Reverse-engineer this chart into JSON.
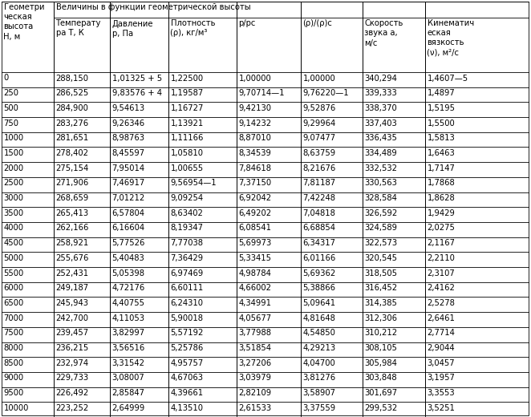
{
  "rows": [
    [
      "0",
      "288,150",
      "1,01325 + 5",
      "1,22500",
      "1,00000",
      "1,00000",
      "340,294",
      "1,4607—5"
    ],
    [
      "250",
      "286,525",
      "9,83576 + 4",
      "1,19587",
      "9,70714—1",
      "9,76220—1",
      "339,333",
      "1,4897"
    ],
    [
      "500",
      "284,900",
      "9,54613",
      "1,16727",
      "9,42130",
      "9,52876",
      "338,370",
      "1,5195"
    ],
    [
      "750",
      "283,276",
      "9,26346",
      "1,13921",
      "9,14232",
      "9,29964",
      "337,403",
      "1,5500"
    ],
    [
      "1000",
      "281,651",
      "8,98763",
      "1,11166",
      "8,87010",
      "9,07477",
      "336,435",
      "1,5813"
    ],
    [
      "1500",
      "278,402",
      "8,45597",
      "1,05810",
      "8,34539",
      "8,63759",
      "334,489",
      "1,6463"
    ],
    [
      "2000",
      "275,154",
      "7,95014",
      "1,00655",
      "7,84618",
      "8,21676",
      "332,532",
      "1,7147"
    ],
    [
      "2500",
      "271,906",
      "7,46917",
      "9,56954—1",
      "7,37150",
      "7,81187",
      "330,563",
      "1,7868"
    ],
    [
      "3000",
      "268,659",
      "7,01212",
      "9,09254",
      "6,92042",
      "7,42248",
      "328,584",
      "1,8628"
    ],
    [
      "3500",
      "265,413",
      "6,57804",
      "8,63402",
      "6,49202",
      "7,04818",
      "326,592",
      "1,9429"
    ],
    [
      "4000",
      "262,166",
      "6,16604",
      "8,19347",
      "6,08541",
      "6,68854",
      "324,589",
      "2,0275"
    ],
    [
      "4500",
      "258,921",
      "5,77526",
      "7,77038",
      "5,69973",
      "6,34317",
      "322,573",
      "2,1167"
    ],
    [
      "5000",
      "255,676",
      "5,40483",
      "7,36429",
      "5,33415",
      "6,01166",
      "320,545",
      "2,2110"
    ],
    [
      "5500",
      "252,431",
      "5,05398",
      "6,97469",
      "4,98784",
      "5,69362",
      "318,505",
      "2,3107"
    ],
    [
      "6000",
      "249,187",
      "4,72176",
      "6,60111",
      "4,66002",
      "5,38866",
      "316,452",
      "2,4162"
    ],
    [
      "6500",
      "245,943",
      "4,40755",
      "6,24310",
      "4,34991",
      "5,09641",
      "314,385",
      "2,5278"
    ],
    [
      "7000",
      "242,700",
      "4,11053",
      "5,90018",
      "4,05677",
      "4,81648",
      "312,306",
      "2,6461"
    ],
    [
      "7500",
      "239,457",
      "3,82997",
      "5,57192",
      "3,77988",
      "4,54850",
      "310,212",
      "2,7714"
    ],
    [
      "8000",
      "236,215",
      "3,56516",
      "5,25786",
      "3,51854",
      "4,29213",
      "308,105",
      "2,9044"
    ],
    [
      "8500",
      "232,974",
      "3,31542",
      "4,95757",
      "3,27206",
      "4,04700",
      "305,984",
      "3,0457"
    ],
    [
      "9000",
      "229,733",
      "3,08007",
      "4,67063",
      "3,03979",
      "3,81276",
      "303,848",
      "3,1957"
    ],
    [
      "9500",
      "226,492",
      "2,85847",
      "4,39661",
      "2,82109",
      "3,58907",
      "301,697",
      "3,3553"
    ],
    [
      "10000",
      "223,252",
      "2,64999",
      "4,13510",
      "2,61533",
      "3,37559",
      "299,532",
      "3,5251"
    ]
  ],
  "font_size": 7.2,
  "lw": 0.6
}
